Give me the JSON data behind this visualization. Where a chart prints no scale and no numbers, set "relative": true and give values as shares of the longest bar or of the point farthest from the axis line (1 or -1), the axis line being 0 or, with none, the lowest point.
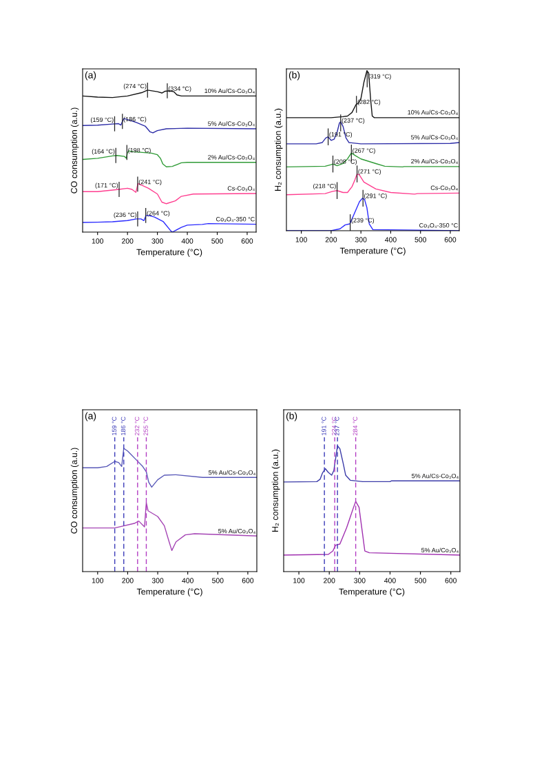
{
  "chart_data": [
    {
      "type": "line",
      "title": "(a)",
      "xlabel": "Temperature (°C)",
      "ylabel": "CO consumption (a.u.)",
      "relative": true,
      "xlim": [
        50,
        630
      ],
      "xticks": [
        100,
        200,
        300,
        400,
        500,
        600
      ],
      "grid": false,
      "legend": false,
      "series": [
        {
          "name": "10% Au/Cs-Co₃O₄",
          "color": "#111111",
          "x": [
            50,
            100,
            150,
            200,
            250,
            267,
            300,
            315,
            325,
            340,
            355,
            365,
            380,
            630
          ],
          "values": [
            0.959,
            0.951,
            0.948,
            0.959,
            0.984,
            1.0,
            0.989,
            0.98,
            0.992,
            0.995,
            0.989,
            0.967,
            0.959,
            0.959
          ]
        },
        {
          "name": "5% Au/Cs-Co₃O₄",
          "color": "#2b2ba6",
          "x": [
            50,
            100,
            150,
            170,
            178,
            183,
            188,
            200,
            230,
            260,
            275,
            285,
            300,
            330,
            400,
            630
          ],
          "values": [
            0.751,
            0.753,
            0.761,
            0.764,
            0.754,
            0.78,
            0.8,
            0.793,
            0.772,
            0.745,
            0.707,
            0.699,
            0.715,
            0.728,
            0.732,
            0.728
          ]
        },
        {
          "name": "2% Au/Cs-Co₃O₄",
          "color": "#2e9a35",
          "x": [
            50,
            100,
            150,
            164,
            190,
            196,
            200,
            205,
            220,
            280,
            300,
            310,
            318,
            330,
            350,
            380,
            400,
            630
          ],
          "values": [
            0.512,
            0.52,
            0.537,
            0.54,
            0.533,
            0.52,
            0.561,
            0.572,
            0.566,
            0.556,
            0.545,
            0.52,
            0.48,
            0.46,
            0.463,
            0.488,
            0.491,
            0.491
          ]
        },
        {
          "name": "Cs-Co₃O₄",
          "color": "#ff3d8f",
          "x": [
            50,
            100,
            150,
            171,
            200,
            215,
            228,
            235,
            245,
            270,
            300,
            315,
            330,
            360,
            380,
            420,
            630
          ],
          "values": [
            0.285,
            0.285,
            0.296,
            0.301,
            0.309,
            0.301,
            0.28,
            0.341,
            0.333,
            0.309,
            0.268,
            0.211,
            0.2,
            0.22,
            0.252,
            0.268,
            0.272
          ]
        },
        {
          "name": "Co₃O₄-350 °C",
          "color": "#2a2aff",
          "x": [
            50,
            100,
            150,
            200,
            230,
            245,
            255,
            262,
            270,
            290,
            320,
            345,
            350,
            380,
            400,
            450,
            470,
            630
          ],
          "values": [
            0.068,
            0.07,
            0.073,
            0.081,
            0.093,
            0.093,
            0.081,
            0.117,
            0.117,
            0.106,
            0.073,
            0.008,
            0,
            0.033,
            0.049,
            0.054,
            0.06,
            0.055
          ]
        }
      ],
      "annotations": [
        {
          "text": "(274 °C)",
          "x": 267,
          "y": 1.0
        },
        {
          "text": "(334 °C)",
          "x": 333,
          "y": 0.995
        },
        {
          "text": "(159 °C)",
          "x": 157,
          "y": 0.763
        },
        {
          "text": "(186 °C)",
          "x": 183,
          "y": 0.78
        },
        {
          "text": "(164 °C)",
          "x": 161,
          "y": 0.54
        },
        {
          "text": "(198 °C)",
          "x": 198,
          "y": 0.561
        },
        {
          "text": "(171 °C)",
          "x": 172,
          "y": 0.301
        },
        {
          "text": "(241 °C)",
          "x": 234,
          "y": 0.338
        },
        {
          "text": "(236 °C)",
          "x": 234,
          "y": 0.093
        },
        {
          "text": "(264 °C)",
          "x": 261,
          "y": 0.117
        }
      ]
    },
    {
      "type": "line",
      "title": "(b)",
      "xlabel": "Temperature (°C)",
      "ylabel": "H₂ consumption (a.u.)",
      "relative": true,
      "xlim": [
        50,
        630
      ],
      "xticks": [
        100,
        200,
        300,
        400,
        500,
        600
      ],
      "grid": false,
      "legend": false,
      "series": [
        {
          "name": "10% Au/Cs-Co₃O₄",
          "color": "#111111",
          "x": [
            50,
            200,
            240,
            255,
            270,
            284,
            292,
            300,
            310,
            320,
            326,
            333,
            338,
            345,
            630
          ],
          "values": [
            0.707,
            0.707,
            0.713,
            0.717,
            0.739,
            0.79,
            0.797,
            0.826,
            0.928,
            1.0,
            0.986,
            0.812,
            0.717,
            0.707,
            0.707
          ]
        },
        {
          "name": "5% Au/Cs-Co₃O₄",
          "color": "#2b2ba6",
          "x": [
            50,
            150,
            170,
            182,
            190,
            200,
            210,
            220,
            228,
            232,
            240,
            250,
            260,
            300,
            600,
            630
          ],
          "values": [
            0.543,
            0.543,
            0.551,
            0.58,
            0.587,
            0.565,
            0.572,
            0.616,
            0.674,
            0.681,
            0.652,
            0.58,
            0.551,
            0.543,
            0.546,
            0.551
          ]
        },
        {
          "name": "2% Au/Cs-Co₃O₄",
          "color": "#2e9a35",
          "x": [
            50,
            180,
            200,
            206,
            220,
            240,
            255,
            268,
            280,
            300,
            350,
            380,
            440,
            445,
            630
          ],
          "values": [
            0.399,
            0.403,
            0.413,
            0.417,
            0.406,
            0.42,
            0.449,
            0.486,
            0.471,
            0.449,
            0.42,
            0.403,
            0.399,
            0.401,
            0.401
          ]
        },
        {
          "name": "Cs-Co₃O₄",
          "color": "#ff3d8f",
          "x": [
            50,
            180,
            205,
            220,
            240,
            255,
            270,
            280,
            287,
            295,
            310,
            350,
            400,
            480,
            490,
            630
          ],
          "values": [
            0.225,
            0.232,
            0.246,
            0.251,
            0.239,
            0.239,
            0.275,
            0.319,
            0.355,
            0.348,
            0.304,
            0.261,
            0.239,
            0.229,
            0.232,
            0.235
          ]
        },
        {
          "name": "Co₃O₄-350 °C",
          "color": "#2a2aff",
          "x": [
            50,
            200,
            230,
            247,
            263,
            280,
            295,
            305,
            312,
            320,
            328,
            340,
            630
          ],
          "values": [
            0,
            0,
            0.012,
            0.036,
            0.043,
            0.116,
            0.181,
            0.203,
            0.196,
            0.145,
            0.043,
            0.007,
            0
          ]
        }
      ],
      "annotations": [
        {
          "text": "(282 °C)",
          "x": 285,
          "y": 0.79
        },
        {
          "text": "(319 °C)",
          "x": 321,
          "y": 0.95
        },
        {
          "text": "(191 °C)",
          "x": 190,
          "y": 0.587
        },
        {
          "text": "(237 °C)",
          "x": 232,
          "y": 0.674
        },
        {
          "text": "(208 °C)",
          "x": 206,
          "y": 0.417
        },
        {
          "text": "(267 °C)",
          "x": 268,
          "y": 0.486
        },
        {
          "text": "(218 °C)",
          "x": 220,
          "y": 0.251
        },
        {
          "text": "(271 °C)",
          "x": 287,
          "y": 0.355
        },
        {
          "text": "(239 °C)",
          "x": 264,
          "y": 0.05
        },
        {
          "text": "(291 °C)",
          "x": 307,
          "y": 0.203
        }
      ]
    },
    {
      "type": "line",
      "title": "(a)",
      "xlabel": "Temperature (°C)",
      "ylabel": "CO consumption (a.u.)",
      "relative": true,
      "xlim": [
        50,
        630
      ],
      "xticks": [
        100,
        200,
        300,
        400,
        500,
        600
      ],
      "grid": false,
      "legend": false,
      "series": [
        {
          "name": "5% Au/Cs-Co₃O₄",
          "color": "#5858b8",
          "x": [
            50,
            100,
            130,
            157,
            170,
            180,
            187,
            200,
            230,
            250,
            262,
            270,
            280,
            300,
            322,
            360,
            450,
            630
          ],
          "values": [
            0.842,
            0.842,
            0.853,
            0.894,
            0.885,
            0.853,
            1.0,
            0.978,
            0.903,
            0.853,
            0.81,
            0.726,
            0.685,
            0.745,
            0.782,
            0.786,
            0.764,
            0.764
          ]
        },
        {
          "name": "5% Au/Co₃O₄",
          "color": "#a444b4",
          "x": [
            50,
            157,
            222,
            237,
            256,
            262,
            268,
            300,
            322,
            338,
            347,
            361,
            392,
            423,
            630
          ],
          "values": [
            0.354,
            0.354,
            0.391,
            0.41,
            0.363,
            0.559,
            0.493,
            0.447,
            0.372,
            0.242,
            0.171,
            0.242,
            0.298,
            0.307,
            0.289
          ]
        }
      ],
      "ref_lines": [
        {
          "axis": "x",
          "value": 157,
          "label": "159 °C",
          "color": "#3a3ab8",
          "line_style": "dashed"
        },
        {
          "axis": "x",
          "value": 187,
          "label": "186 °C",
          "color": "#3a3ab8",
          "line_style": "dashed"
        },
        {
          "axis": "x",
          "value": 233,
          "label": "232 °C",
          "color": "#b23cc2",
          "line_style": "dashed"
        },
        {
          "axis": "x",
          "value": 262,
          "label": "255 °C",
          "color": "#b23cc2",
          "line_style": "dashed"
        }
      ]
    },
    {
      "type": "line",
      "title": "(b)",
      "xlabel": "Temperature (°C)",
      "ylabel": "H₂ consumption (a.u.)",
      "relative": true,
      "xlim": [
        50,
        630
      ],
      "xticks": [
        100,
        200,
        300,
        400,
        500,
        600
      ],
      "grid": false,
      "legend": false,
      "series": [
        {
          "name": "5% Au/Cs-Co₃O₄",
          "color": "#3a3aa8",
          "x": [
            50,
            159,
            170,
            178,
            187,
            197,
            208,
            215,
            223,
            227,
            235,
            246,
            254,
            269,
            310,
            400,
            405,
            630
          ],
          "values": [
            0.712,
            0.715,
            0.734,
            0.785,
            0.818,
            0.788,
            0.766,
            0.803,
            0.931,
            1.0,
            0.976,
            0.858,
            0.766,
            0.726,
            0.715,
            0.715,
            0.721,
            0.721
          ]
        },
        {
          "name": "5% Au/Co₃O₄",
          "color": "#a030b0",
          "x": [
            50,
            197,
            212,
            221,
            235,
            257,
            280,
            287,
            298,
            310,
            317,
            332,
            630
          ],
          "values": [
            0.131,
            0.137,
            0.164,
            0.21,
            0.219,
            0.347,
            0.511,
            0.557,
            0.511,
            0.292,
            0.164,
            0.15,
            0.131
          ]
        }
      ],
      "ref_lines": [
        {
          "axis": "x",
          "value": 184,
          "label": "191 °C",
          "color": "#3a3ab8",
          "line_style": "dashed"
        },
        {
          "axis": "x",
          "value": 218,
          "label": "224 °C",
          "color": "#b23cc2",
          "line_style": "dashed"
        },
        {
          "axis": "x",
          "value": 227,
          "label": "237 °C",
          "color": "#3a3ab8",
          "line_style": "dashed"
        },
        {
          "axis": "x",
          "value": 287,
          "label": "284 °C",
          "color": "#b23cc2",
          "line_style": "dashed"
        }
      ]
    }
  ]
}
